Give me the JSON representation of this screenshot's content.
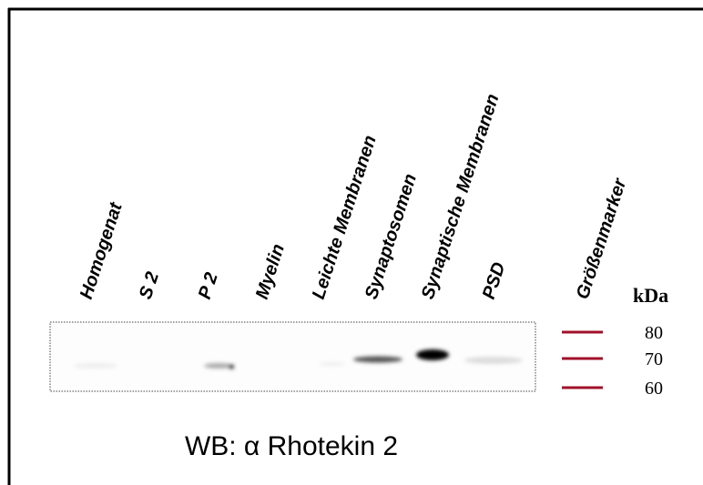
{
  "lanes": [
    "Homogenat",
    "S 2",
    "P 2",
    "Myelin",
    "Leichte Membranen",
    "Synaptosomen",
    "Synaptische Membranen",
    "PSD",
    "Größenmarker"
  ],
  "unit": "kDa",
  "markers": [
    80,
    70,
    60
  ],
  "caption": "WB: α Rhotekin 2"
}
